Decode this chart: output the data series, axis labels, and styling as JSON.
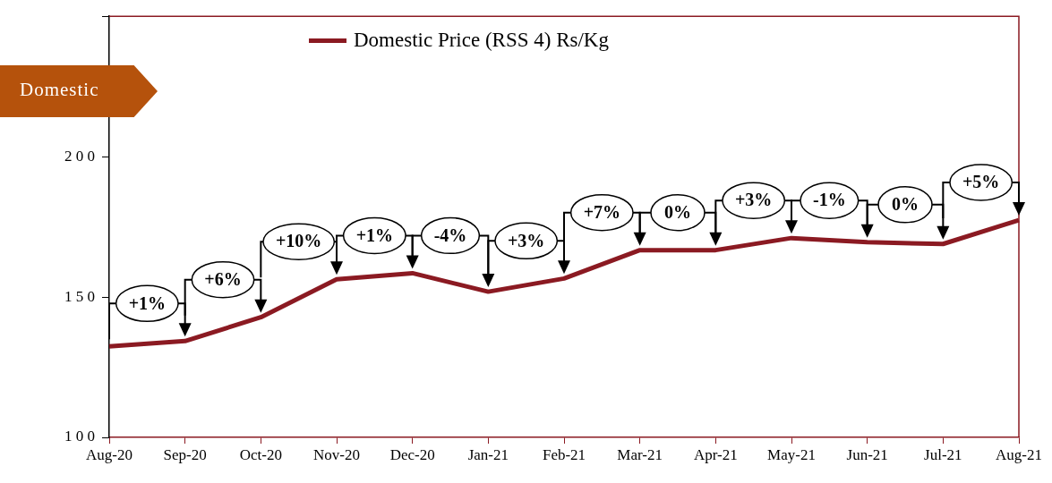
{
  "chart_data": {
    "type": "line",
    "title": "Domestic",
    "categories": [
      "Aug-20",
      "Sep-20",
      "Oct-20",
      "Nov-20",
      "Dec-20",
      "Jan-21",
      "Feb-21",
      "Mar-21",
      "Apr-21",
      "May-21",
      "Jun-21",
      "Jul-21",
      "Aug-21"
    ],
    "series": [
      {
        "name": "Domestic Price (RSS 4) Rs/Kg",
        "color": "#8b1a22",
        "values": [
          132.4,
          134.3,
          142.8,
          156.3,
          158.5,
          151.9,
          156.6,
          166.7,
          166.7,
          171,
          169.5,
          168.9,
          177.4
        ]
      }
    ],
    "ylim": [
      100,
      250
    ],
    "yticks": [
      100,
      150,
      200,
      {
        "value": 250,
        "label": null
      }
    ],
    "legend": "top",
    "grid": false,
    "marker": "none",
    "line_style": "solid",
    "annotations": [
      {
        "text": "+1%",
        "x": "Sep-20",
        "y": 134.3
      },
      {
        "text": "+6%",
        "x": "Oct-20",
        "y": 142.8
      },
      {
        "text": "+10%",
        "x": "Nov-20",
        "y": 156.3
      },
      {
        "text": "+1%",
        "x": "Dec-20",
        "y": 158.5
      },
      {
        "text": "-4%",
        "x": "Jan-21",
        "y": 151.9
      },
      {
        "text": "+3%",
        "x": "Feb-21",
        "y": 156.6
      },
      {
        "text": "+7%",
        "x": "Mar-21",
        "y": 166.7
      },
      {
        "text": "0%",
        "x": "Apr-21",
        "y": 166.7
      },
      {
        "text": "+3%",
        "x": "May-21",
        "y": 171
      },
      {
        "text": "-1%",
        "x": "Jun-21",
        "y": 169.5
      },
      {
        "text": "0%",
        "x": "Jul-21",
        "y": 168.9
      },
      {
        "text": "+5%",
        "x": "Aug-21",
        "y": 177.4
      }
    ]
  }
}
